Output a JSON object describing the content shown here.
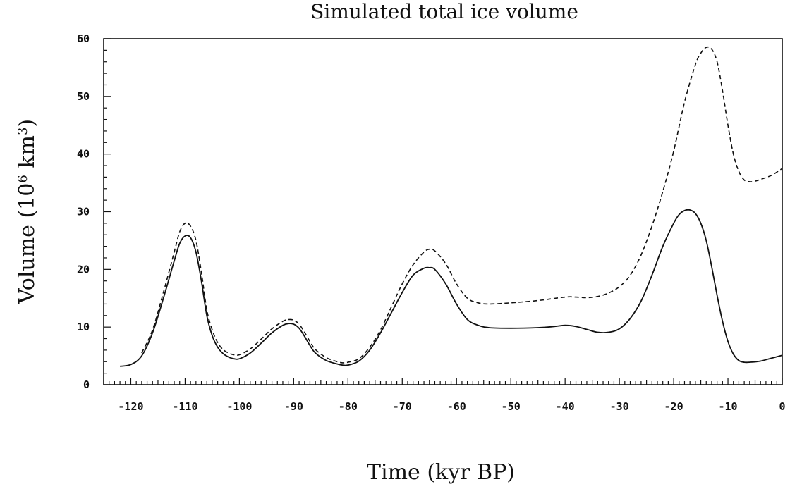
{
  "chart_data": {
    "type": "line",
    "title": "Simulated total ice volume",
    "xlabel": "Time (kyr BP)",
    "ylabel_main": "Volume (10",
    "ylabel_exp1": "6",
    "ylabel_mid": " km",
    "ylabel_exp2": "3",
    "ylabel_end": ")",
    "xlim": [
      -125,
      0
    ],
    "ylim": [
      0,
      60
    ],
    "xticks": [
      -120,
      -110,
      -100,
      -90,
      -80,
      -70,
      -60,
      -50,
      -40,
      -30,
      -20,
      -10,
      0
    ],
    "yticks": [
      0,
      10,
      20,
      30,
      40,
      50,
      60
    ],
    "grid": false,
    "series": [
      {
        "style": "solid",
        "x": [
          -122,
          -120,
          -118,
          -116,
          -114,
          -112,
          -111,
          -110,
          -109,
          -108,
          -107,
          -106,
          -105,
          -104,
          -103,
          -102,
          -101,
          -100,
          -98,
          -96,
          -94,
          -92,
          -91,
          -90,
          -89,
          -88,
          -87,
          -86,
          -84,
          -82,
          -81,
          -80,
          -78,
          -76,
          -74,
          -72,
          -70,
          -68,
          -66,
          -65,
          -64,
          -62,
          -60,
          -58,
          -56,
          -54,
          -50,
          -45,
          -42,
          -40,
          -38,
          -36,
          -34,
          -32,
          -30,
          -28,
          -26,
          -24,
          -22,
          -20,
          -19,
          -18,
          -17,
          -16,
          -15,
          -14,
          -13,
          -12,
          -11,
          -10,
          -9,
          -8,
          -7,
          -6,
          -4,
          -2,
          0
        ],
        "y": [
          3.2,
          3.5,
          5.0,
          9.0,
          15.0,
          21.5,
          24.5,
          25.8,
          25.5,
          23.0,
          18.0,
          12.0,
          8.5,
          6.5,
          5.4,
          4.8,
          4.5,
          4.5,
          5.5,
          7.2,
          9.0,
          10.3,
          10.6,
          10.5,
          9.8,
          8.4,
          6.8,
          5.5,
          4.2,
          3.6,
          3.4,
          3.4,
          4.1,
          6.0,
          9.0,
          12.5,
          16.0,
          19.0,
          20.2,
          20.3,
          20.0,
          17.5,
          14.0,
          11.3,
          10.3,
          9.9,
          9.8,
          9.9,
          10.1,
          10.3,
          10.1,
          9.6,
          9.1,
          9.1,
          9.7,
          11.5,
          14.5,
          19.0,
          24.0,
          28.0,
          29.5,
          30.2,
          30.3,
          29.7,
          28.0,
          25.0,
          20.5,
          15.5,
          11.0,
          7.5,
          5.3,
          4.2,
          3.9,
          3.9,
          4.1,
          4.6,
          5.1
        ]
      },
      {
        "style": "dashed",
        "x": [
          -118,
          -116,
          -114,
          -112,
          -111,
          -110,
          -109,
          -108,
          -107,
          -106,
          -105,
          -104,
          -103,
          -102,
          -101,
          -100,
          -98,
          -96,
          -94,
          -92,
          -91,
          -90,
          -89,
          -88,
          -87,
          -86,
          -84,
          -82,
          -81,
          -80,
          -78,
          -76,
          -74,
          -72,
          -70,
          -68,
          -66,
          -65,
          -64,
          -62,
          -60,
          -58,
          -56,
          -54,
          -50,
          -45,
          -40,
          -38,
          -36,
          -34,
          -32,
          -30,
          -28,
          -26,
          -24,
          -22,
          -20,
          -18,
          -16,
          -15,
          -14,
          -13,
          -12,
          -11,
          -10,
          -9,
          -8,
          -7,
          -6,
          -5,
          -4,
          -2,
          0
        ],
        "y": [
          5.5,
          9.5,
          16.0,
          23.0,
          26.5,
          28.0,
          27.5,
          25.0,
          19.5,
          13.0,
          9.5,
          7.3,
          6.1,
          5.5,
          5.2,
          5.2,
          6.2,
          7.9,
          9.7,
          11.0,
          11.3,
          11.2,
          10.5,
          9.1,
          7.5,
          6.1,
          4.7,
          4.0,
          3.8,
          3.9,
          4.5,
          6.5,
          9.5,
          13.5,
          17.5,
          20.8,
          23.0,
          23.5,
          23.2,
          21.0,
          17.5,
          15.0,
          14.2,
          14.0,
          14.2,
          14.6,
          15.2,
          15.2,
          15.1,
          15.3,
          15.9,
          17.0,
          19.0,
          22.5,
          27.5,
          33.5,
          40.5,
          49.0,
          55.5,
          57.5,
          58.5,
          58.2,
          56.0,
          51.0,
          45.0,
          40.0,
          37.0,
          35.5,
          35.2,
          35.3,
          35.6,
          36.3,
          37.5
        ]
      }
    ]
  }
}
